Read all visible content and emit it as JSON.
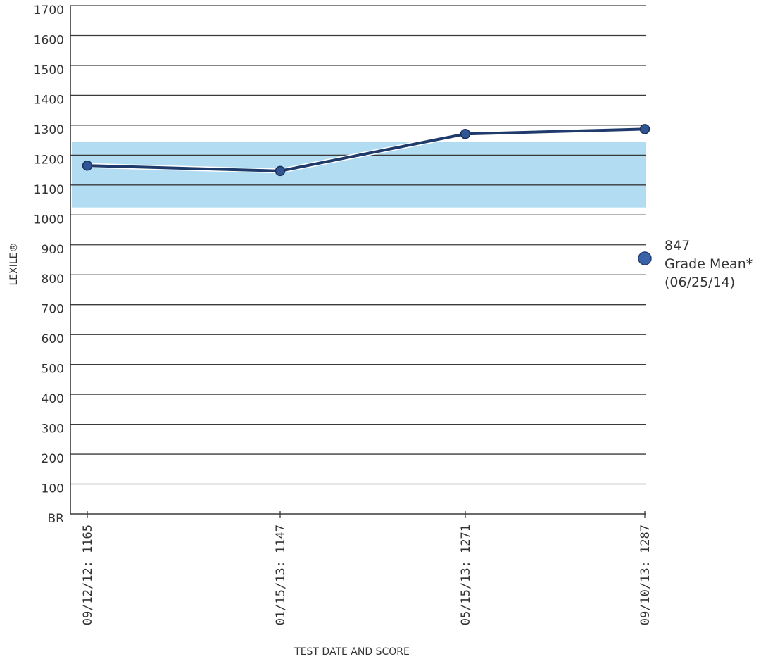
{
  "chart_data": {
    "type": "line",
    "xlabel": "TEST DATE AND SCORE",
    "ylabel": "LEXILE®",
    "ylim": [
      0,
      1700
    ],
    "y_ticks": [
      {
        "value": 0,
        "label": "BR"
      },
      {
        "value": 100,
        "label": "100"
      },
      {
        "value": 200,
        "label": "200"
      },
      {
        "value": 300,
        "label": "300"
      },
      {
        "value": 400,
        "label": "400"
      },
      {
        "value": 500,
        "label": "500"
      },
      {
        "value": 600,
        "label": "600"
      },
      {
        "value": 700,
        "label": "700"
      },
      {
        "value": 800,
        "label": "800"
      },
      {
        "value": 900,
        "label": "900"
      },
      {
        "value": 1000,
        "label": "1000"
      },
      {
        "value": 1100,
        "label": "1100"
      },
      {
        "value": 1200,
        "label": "1200"
      },
      {
        "value": 1300,
        "label": "1300"
      },
      {
        "value": 1400,
        "label": "1400"
      },
      {
        "value": 1500,
        "label": "1500"
      },
      {
        "value": 1600,
        "label": "1600"
      },
      {
        "value": 1700,
        "label": "1700"
      }
    ],
    "categories": [
      "09/12/12:  1165",
      "01/15/13:  1147",
      "05/15/13:  1271",
      "09/10/13:  1287"
    ],
    "series": [
      {
        "values": [
          1165,
          1147,
          1271,
          1287
        ],
        "color": "#1f3b6b"
      }
    ],
    "band": {
      "low": 1025,
      "high": 1245,
      "color": "#a8d8f0"
    },
    "grid": true,
    "grade_mean": {
      "value_label": "847",
      "label": "Grade Mean*",
      "date": "(06/25/14)",
      "marker_color": "#3a62a8"
    }
  }
}
